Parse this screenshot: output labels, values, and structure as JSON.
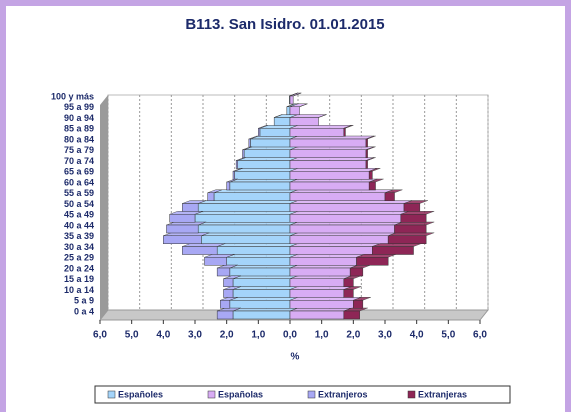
{
  "chart_data": {
    "type": "pyramid",
    "title": "B113. San Isidro. 01.01.2015",
    "x_label": "%",
    "categories": [
      "0 a 4",
      "5 a 9",
      "10 a 14",
      "15 a 19",
      "20 a 24",
      "25 a 29",
      "30 a 34",
      "35 a 39",
      "40 a 44",
      "45 a 49",
      "50 a 54",
      "55 a 59",
      "60 a 64",
      "65 a 69",
      "70 a 74",
      "75 a 79",
      "80 a 84",
      "85 a 89",
      "90 a 94",
      "95 a 99",
      "100 y más"
    ],
    "series": [
      {
        "name": "Españoles",
        "color": "#a4d4fa",
        "values": [
          -1.8,
          -1.9,
          -1.8,
          -1.8,
          -1.9,
          -2.0,
          -2.3,
          -2.8,
          -2.9,
          -3.0,
          -2.9,
          -2.4,
          -1.9,
          -1.75,
          -1.65,
          -1.45,
          -1.25,
          -0.95,
          -0.5,
          -0.1,
          -0.02
        ]
      },
      {
        "name": "Españolas",
        "color": "#d8acf4",
        "values": [
          1.7,
          2.0,
          1.7,
          1.7,
          1.9,
          2.1,
          2.6,
          3.1,
          3.3,
          3.5,
          3.6,
          3.0,
          2.5,
          2.5,
          2.4,
          2.4,
          2.4,
          1.7,
          0.9,
          0.3,
          0.1
        ]
      },
      {
        "name": "Extranjeros",
        "color": "#a8a8f4",
        "values": [
          -0.5,
          -0.3,
          -0.3,
          -0.3,
          -0.4,
          -0.7,
          -1.1,
          -1.2,
          -1.0,
          -0.8,
          -0.5,
          -0.2,
          -0.1,
          -0.05,
          -0.05,
          -0.05,
          -0.05,
          -0.05,
          0,
          0,
          0
        ]
      },
      {
        "name": "Extranjeras",
        "color": "#8e2656",
        "values": [
          0.5,
          0.3,
          0.3,
          0.3,
          0.4,
          1.0,
          1.3,
          1.2,
          1.0,
          0.8,
          0.5,
          0.3,
          0.2,
          0.1,
          0.05,
          0.05,
          0.05,
          0.05,
          0,
          0,
          0
        ]
      }
    ],
    "stack_on": [
      null,
      null,
      0,
      1
    ],
    "xlim": [
      -6,
      6
    ],
    "xticks": [
      {
        "value": -6,
        "label": "6,0"
      },
      {
        "value": -5,
        "label": "5,0"
      },
      {
        "value": -4,
        "label": "4,0"
      },
      {
        "value": -3,
        "label": "3,0"
      },
      {
        "value": -2,
        "label": "2,0"
      },
      {
        "value": -1,
        "label": "1,0"
      },
      {
        "value": 0,
        "label": "0,0"
      },
      {
        "value": 1,
        "label": "1,0"
      },
      {
        "value": 2,
        "label": "2,0"
      },
      {
        "value": 3,
        "label": "3,0"
      },
      {
        "value": 4,
        "label": "4,0"
      },
      {
        "value": 5,
        "label": "5,0"
      },
      {
        "value": 6,
        "label": "6,0"
      }
    ],
    "grid": true
  }
}
